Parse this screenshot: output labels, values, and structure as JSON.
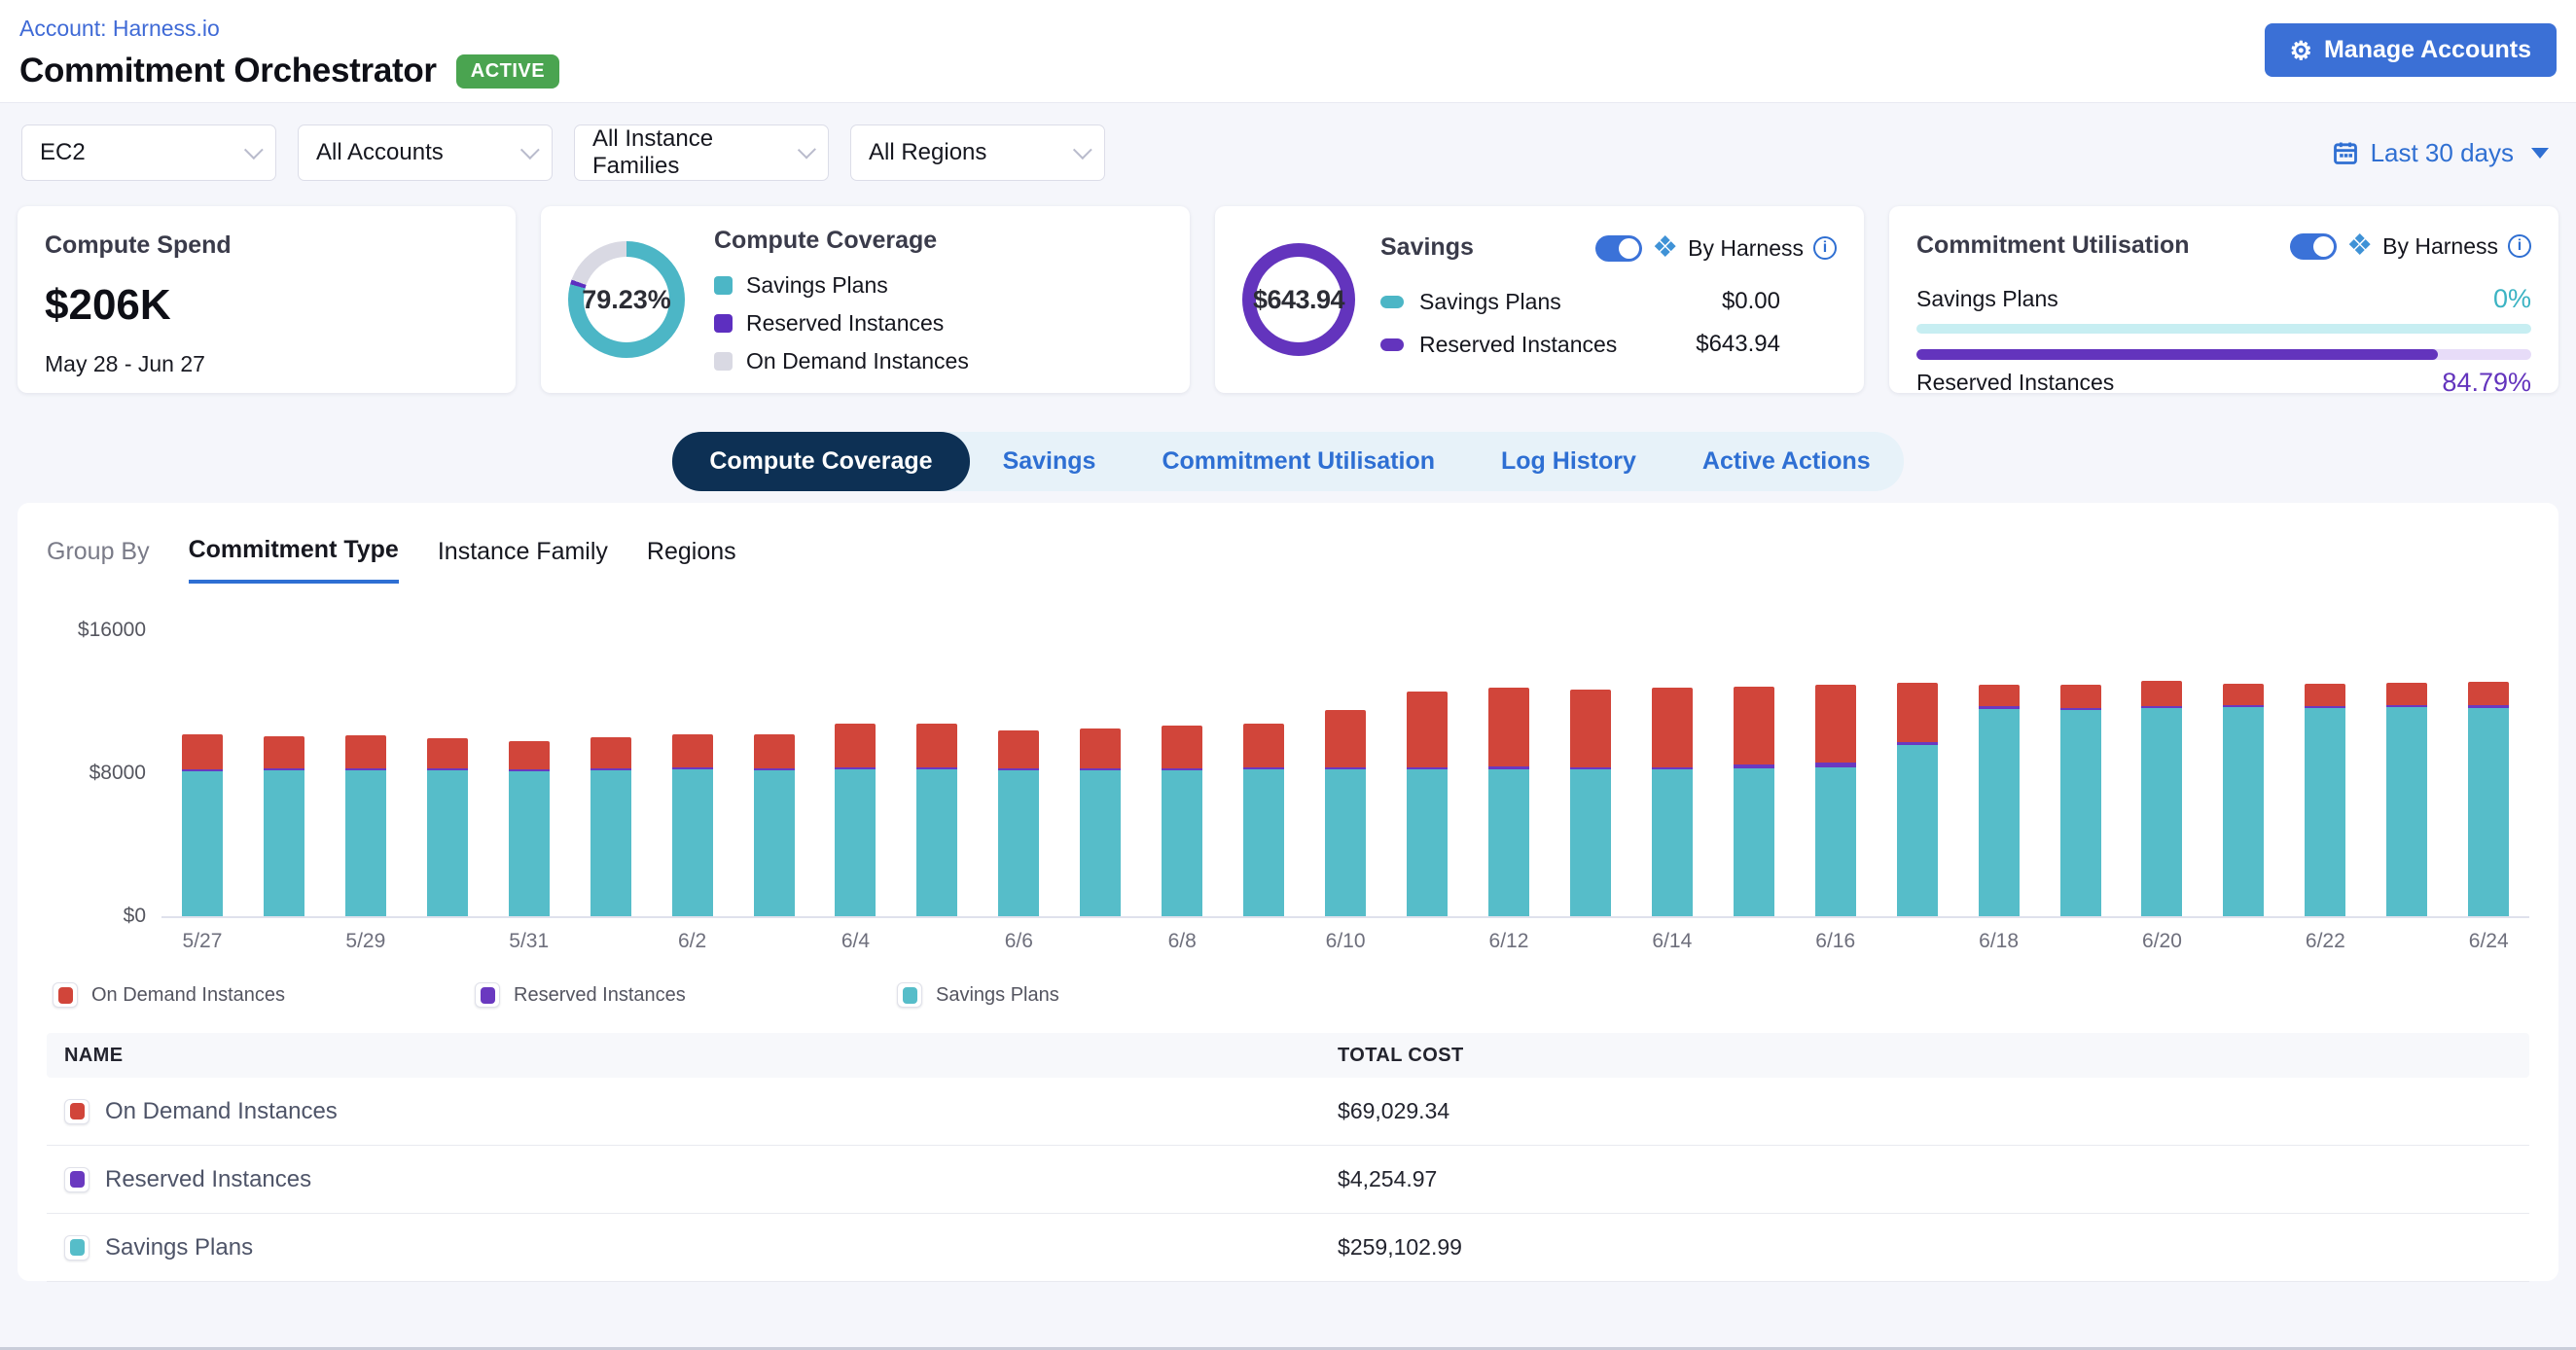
{
  "header": {
    "breadcrumb": "Account: Harness.io",
    "title": "Commitment Orchestrator",
    "status_badge": "ACTIVE",
    "manage_accounts_label": "Manage Accounts"
  },
  "filters": {
    "service": "EC2",
    "accounts": "All Accounts",
    "instance_families": "All Instance Families",
    "regions": "All Regions",
    "date_range": "Last 30 days"
  },
  "cards": {
    "compute_spend": {
      "title": "Compute Spend",
      "value": "$206K",
      "period": "May 28 - Jun 27"
    },
    "compute_coverage": {
      "title": "Compute Coverage",
      "percent": "79.23%",
      "donut": {
        "savings_plans_pct": 79.23,
        "reserved_pct": 1.3,
        "on_demand_pct": 19.47
      },
      "colors": {
        "savings_plans": "#4cb6c6",
        "reserved": "#5d2fc0",
        "on_demand": "#d9d9e3"
      },
      "legend": [
        {
          "label": "Savings Plans"
        },
        {
          "label": "Reserved Instances"
        },
        {
          "label": "On Demand Instances"
        }
      ]
    },
    "savings": {
      "title": "Savings",
      "toggle_label": "By Harness",
      "total": "$643.94",
      "rows": [
        {
          "label": "Savings Plans",
          "value": "$0.00",
          "color": "#4cb6c6"
        },
        {
          "label": "Reserved Instances",
          "value": "$643.94",
          "color": "#6334bd"
        }
      ]
    },
    "commitment_utilisation": {
      "title": "Commitment Utilisation",
      "toggle_label": "By Harness",
      "rows": [
        {
          "label": "Savings Plans",
          "percent": "0%"
        },
        {
          "label": "Reserved Instances",
          "percent": "84.79%"
        }
      ]
    }
  },
  "tabs": [
    "Compute Coverage",
    "Savings",
    "Commitment Utilisation",
    "Log History",
    "Active Actions"
  ],
  "group_by": {
    "label": "Group By",
    "options": [
      "Commitment Type",
      "Instance Family",
      "Regions"
    ]
  },
  "chart_data": {
    "type": "bar",
    "stacked": true,
    "ylim": [
      0,
      16000
    ],
    "ytick_labels": [
      "$0",
      "$8000",
      "$16000"
    ],
    "x_label_every": 2,
    "grid": false,
    "legend_position": "bottom",
    "categories": [
      "5/27",
      "5/28",
      "5/29",
      "5/30",
      "5/31",
      "6/1",
      "6/2",
      "6/3",
      "6/4",
      "6/5",
      "6/6",
      "6/7",
      "6/8",
      "6/9",
      "6/10",
      "6/11",
      "6/12",
      "6/13",
      "6/14",
      "6/15",
      "6/16",
      "6/17",
      "6/18",
      "6/19",
      "6/20",
      "6/21",
      "6/22",
      "6/23",
      "6/24"
    ],
    "series": [
      {
        "name": "Savings Plans",
        "color": "#56bdc9",
        "values": [
          7950,
          7980,
          7980,
          7980,
          7960,
          7980,
          8050,
          7990,
          8040,
          8040,
          7990,
          7990,
          8000,
          8030,
          8070,
          8070,
          8070,
          8070,
          8070,
          8100,
          8150,
          9400,
          11350,
          11330,
          11420,
          11450,
          11420,
          11480,
          11400
        ]
      },
      {
        "name": "Reserved Instances",
        "color": "#6a39c0",
        "values": [
          90,
          90,
          90,
          90,
          80,
          90,
          90,
          90,
          90,
          110,
          130,
          130,
          110,
          90,
          110,
          130,
          160,
          130,
          130,
          210,
          260,
          160,
          160,
          130,
          110,
          130,
          130,
          130,
          160
        ]
      },
      {
        "name": "On Demand Instances",
        "color": "#d1453a",
        "values": [
          1900,
          1760,
          1800,
          1640,
          1560,
          1720,
          1810,
          1870,
          2420,
          2420,
          2060,
          2160,
          2370,
          2380,
          3170,
          4150,
          4320,
          4280,
          4350,
          4240,
          4260,
          3240,
          1160,
          1290,
          1370,
          1180,
          1210,
          1240,
          1300
        ]
      }
    ]
  },
  "chart_legend": [
    {
      "label": "On Demand Instances",
      "color": "#d1453a"
    },
    {
      "label": "Reserved Instances",
      "color": "#6a39c0"
    },
    {
      "label": "Savings Plans",
      "color": "#56bdc9"
    }
  ],
  "table": {
    "columns": [
      "NAME",
      "TOTAL COST"
    ],
    "rows": [
      {
        "name": "On Demand Instances",
        "color": "#d1453a",
        "total": "$69,029.34"
      },
      {
        "name": "Reserved Instances",
        "color": "#6a39c0",
        "total": "$4,254.97"
      },
      {
        "name": "Savings Plans",
        "color": "#56bdc9",
        "total": "$259,102.99"
      }
    ]
  }
}
